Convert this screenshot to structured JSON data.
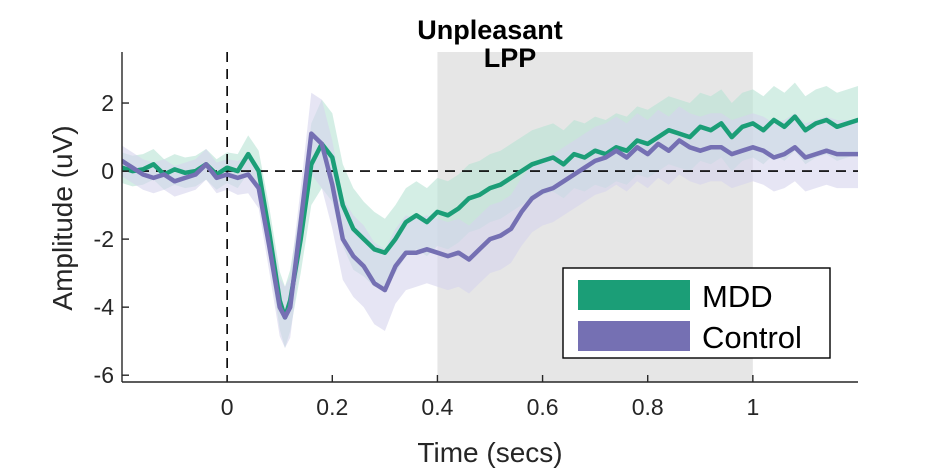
{
  "chart_data": {
    "type": "line",
    "title": "Unpleasant",
    "subtitle": "LPP",
    "xlabel": "Time (secs)",
    "ylabel": "Amplitude (uV)",
    "xlim": [
      -0.2,
      1.2
    ],
    "ylim": [
      -6.2,
      3.5
    ],
    "xticks": [
      0,
      0.2,
      0.4,
      0.6,
      0.8,
      1
    ],
    "xtick_labels": [
      "0",
      "0.2",
      "0.4",
      "0.6",
      "0.8",
      "1"
    ],
    "yticks": [
      -6,
      -4,
      -2,
      0,
      2
    ],
    "ytick_labels": [
      "-6",
      "-4",
      "-2",
      "0",
      "2"
    ],
    "grid": false,
    "zero_line": {
      "y": 0,
      "style": "dashed"
    },
    "onset_line": {
      "x": 0,
      "style": "dashed"
    },
    "shaded_window": {
      "x": [
        0.4,
        1.0
      ],
      "color": "#e6e6e6"
    },
    "legend": {
      "position": "bottom-right"
    },
    "series": [
      {
        "name": "MDD",
        "color": "#1b9e77",
        "band_color": "#b7e3d4",
        "x": [
          -0.2,
          -0.18,
          -0.16,
          -0.14,
          -0.12,
          -0.1,
          -0.08,
          -0.06,
          -0.04,
          -0.02,
          0,
          0.02,
          0.04,
          0.06,
          0.08,
          0.1,
          0.11,
          0.12,
          0.14,
          0.16,
          0.18,
          0.2,
          0.22,
          0.24,
          0.26,
          0.28,
          0.3,
          0.32,
          0.34,
          0.36,
          0.38,
          0.4,
          0.42,
          0.44,
          0.46,
          0.48,
          0.5,
          0.52,
          0.54,
          0.56,
          0.58,
          0.6,
          0.62,
          0.64,
          0.66,
          0.68,
          0.7,
          0.72,
          0.74,
          0.76,
          0.78,
          0.8,
          0.82,
          0.84,
          0.86,
          0.88,
          0.9,
          0.92,
          0.94,
          0.96,
          0.98,
          1.0,
          1.02,
          1.04,
          1.06,
          1.08,
          1.1,
          1.12,
          1.14,
          1.16,
          1.18,
          1.2
        ],
        "y": [
          0.1,
          0.0,
          0.05,
          0.2,
          -0.1,
          0.05,
          -0.05,
          0.0,
          0.2,
          -0.1,
          0.1,
          0.0,
          0.5,
          0.0,
          -1.8,
          -3.8,
          -4.3,
          -3.8,
          -2.0,
          0.2,
          0.8,
          0.4,
          -1.0,
          -1.7,
          -2.0,
          -2.3,
          -2.4,
          -2.0,
          -1.5,
          -1.3,
          -1.5,
          -1.2,
          -1.3,
          -1.1,
          -0.8,
          -0.7,
          -0.5,
          -0.4,
          -0.2,
          0.0,
          0.2,
          0.3,
          0.4,
          0.2,
          0.5,
          0.4,
          0.6,
          0.5,
          0.7,
          0.6,
          0.9,
          0.8,
          1.0,
          1.2,
          1.1,
          1.0,
          1.3,
          1.2,
          1.4,
          1.0,
          1.3,
          1.4,
          1.2,
          1.5,
          1.3,
          1.6,
          1.2,
          1.4,
          1.5,
          1.3,
          1.4,
          1.5
        ],
        "ci": [
          0.45,
          0.45,
          0.45,
          0.45,
          0.45,
          0.45,
          0.45,
          0.45,
          0.45,
          0.45,
          0.45,
          0.5,
          0.55,
          0.6,
          0.75,
          0.85,
          0.9,
          0.9,
          1.0,
          1.2,
          1.3,
          1.3,
          1.2,
          1.2,
          1.1,
          1.1,
          1.0,
          1.0,
          1.0,
          1.0,
          1.0,
          1.0,
          1.0,
          1.0,
          1.0,
          1.0,
          1.0,
          1.0,
          1.0,
          1.0,
          1.0,
          1.0,
          1.0,
          1.0,
          1.0,
          1.0,
          1.0,
          1.0,
          1.0,
          1.0,
          1.0,
          1.0,
          1.0,
          1.0,
          1.0,
          1.0,
          1.0,
          1.0,
          1.0,
          1.0,
          1.0,
          1.0,
          1.0,
          1.0,
          1.0,
          1.0,
          1.0,
          1.0,
          1.0,
          1.0,
          1.0,
          1.0
        ]
      },
      {
        "name": "Control",
        "color": "#7570b3",
        "band_color": "#d6d4ec",
        "x": [
          -0.2,
          -0.18,
          -0.16,
          -0.14,
          -0.12,
          -0.1,
          -0.08,
          -0.06,
          -0.04,
          -0.02,
          0,
          0.02,
          0.04,
          0.06,
          0.08,
          0.1,
          0.11,
          0.12,
          0.14,
          0.16,
          0.18,
          0.2,
          0.22,
          0.24,
          0.26,
          0.28,
          0.3,
          0.32,
          0.34,
          0.36,
          0.38,
          0.4,
          0.42,
          0.44,
          0.46,
          0.48,
          0.5,
          0.52,
          0.54,
          0.56,
          0.58,
          0.6,
          0.62,
          0.64,
          0.66,
          0.68,
          0.7,
          0.72,
          0.74,
          0.76,
          0.78,
          0.8,
          0.82,
          0.84,
          0.86,
          0.88,
          0.9,
          0.92,
          0.94,
          0.96,
          0.98,
          1.0,
          1.02,
          1.04,
          1.06,
          1.08,
          1.1,
          1.12,
          1.14,
          1.16,
          1.18,
          1.2
        ],
        "y": [
          0.3,
          0.1,
          -0.1,
          -0.2,
          -0.1,
          -0.3,
          -0.2,
          -0.1,
          0.2,
          -0.2,
          -0.1,
          -0.2,
          -0.1,
          -0.5,
          -2.2,
          -4.0,
          -4.3,
          -4.0,
          -1.5,
          1.1,
          0.8,
          -0.4,
          -2.0,
          -2.5,
          -2.8,
          -3.3,
          -3.5,
          -2.8,
          -2.4,
          -2.4,
          -2.3,
          -2.4,
          -2.5,
          -2.4,
          -2.6,
          -2.3,
          -2.0,
          -1.9,
          -1.7,
          -1.2,
          -0.8,
          -0.6,
          -0.5,
          -0.3,
          -0.1,
          0.1,
          0.3,
          0.4,
          0.6,
          0.4,
          0.7,
          0.5,
          0.8,
          0.6,
          0.9,
          0.7,
          0.6,
          0.7,
          0.7,
          0.5,
          0.6,
          0.7,
          0.6,
          0.4,
          0.5,
          0.7,
          0.4,
          0.5,
          0.6,
          0.5,
          0.5,
          0.5
        ],
        "ci": [
          0.45,
          0.45,
          0.45,
          0.45,
          0.45,
          0.45,
          0.45,
          0.45,
          0.45,
          0.45,
          0.45,
          0.5,
          0.55,
          0.6,
          0.75,
          0.85,
          0.9,
          0.9,
          1.0,
          1.2,
          1.3,
          1.3,
          1.2,
          1.2,
          1.2,
          1.2,
          1.2,
          1.1,
          1.1,
          1.0,
          1.0,
          1.0,
          1.0,
          1.0,
          1.0,
          1.0,
          1.0,
          1.0,
          1.0,
          1.0,
          1.0,
          1.0,
          1.0,
          1.0,
          1.0,
          1.0,
          1.0,
          1.0,
          1.0,
          1.0,
          1.0,
          1.0,
          1.0,
          1.0,
          1.0,
          1.0,
          1.0,
          1.0,
          1.0,
          1.0,
          1.0,
          1.0,
          1.0,
          1.0,
          1.0,
          1.0,
          1.0,
          1.0,
          1.0,
          1.0,
          1.0,
          1.0
        ]
      }
    ]
  }
}
